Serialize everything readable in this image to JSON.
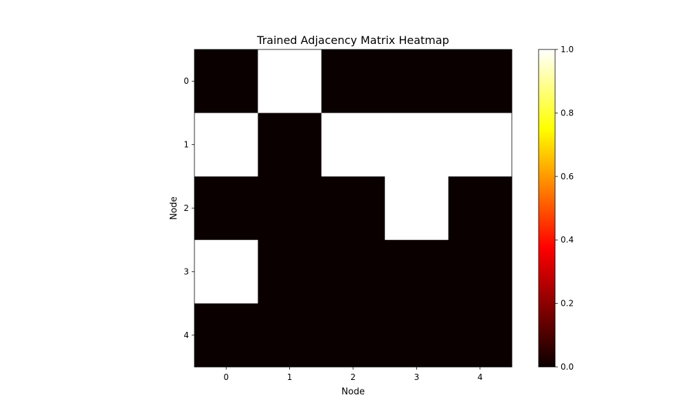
{
  "chart_data": {
    "type": "heatmap",
    "title": "Trained Adjacency Matrix Heatmap",
    "xlabel": "Node",
    "ylabel": "Node",
    "x_categories": [
      "0",
      "1",
      "2",
      "3",
      "4"
    ],
    "y_categories": [
      "0",
      "1",
      "2",
      "3",
      "4"
    ],
    "values": [
      [
        0,
        1,
        0,
        0,
        0
      ],
      [
        1,
        0,
        1,
        1,
        1
      ],
      [
        0,
        0,
        0,
        1,
        0
      ],
      [
        1,
        0,
        0,
        0,
        0
      ],
      [
        0,
        0,
        0,
        0,
        0
      ]
    ],
    "colormap": "hot",
    "value_range": [
      0,
      1
    ],
    "colorbar": {
      "ticks": [
        0.0,
        0.2,
        0.4,
        0.6,
        0.8,
        1.0
      ],
      "tick_labels": [
        "0.0",
        "0.2",
        "0.4",
        "0.6",
        "0.8",
        "1.0"
      ]
    },
    "grid": false
  }
}
